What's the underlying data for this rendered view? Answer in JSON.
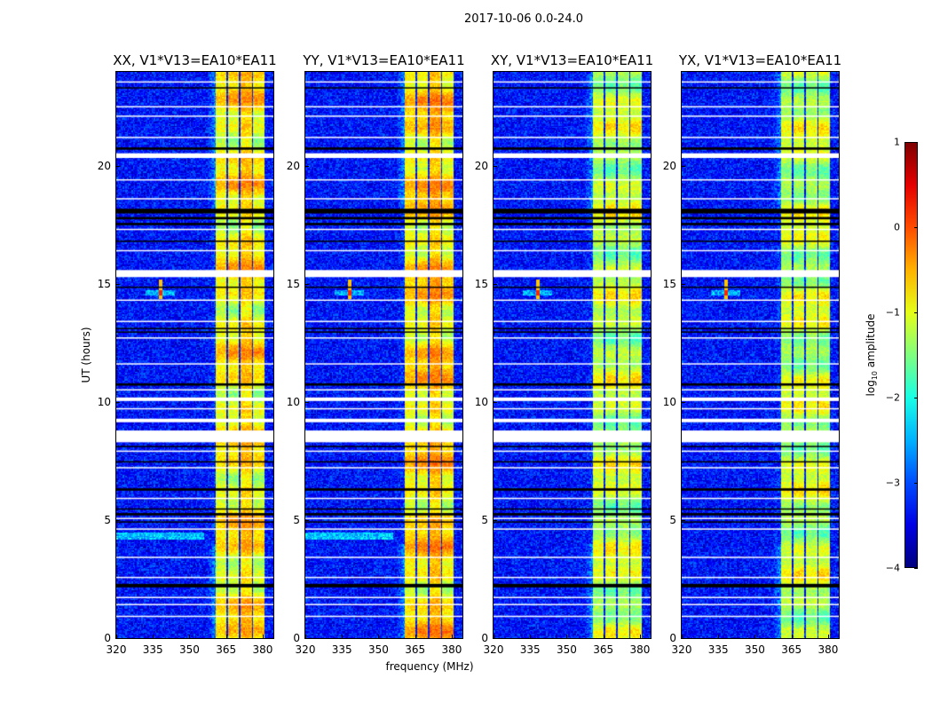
{
  "suptitle": "2017-10-06 0.0-24.0",
  "chart_data": {
    "type": "heatmap",
    "xlabel": "frequency (MHz)",
    "ylabel": "UT (hours)",
    "xlim": [
      320,
      384.4
    ],
    "ylim": [
      0,
      24
    ],
    "xticks": [
      320,
      335,
      350,
      365,
      380
    ],
    "yticks": [
      0,
      5,
      10,
      15,
      20
    ],
    "panels": [
      {
        "title": "XX, V1*V13=EA10*EA11",
        "band_level": -0.9
      },
      {
        "title": "YY, V1*V13=EA10*EA11",
        "band_level": -0.8
      },
      {
        "title": "XY, V1*V13=EA10*EA11",
        "band_level": -1.2
      },
      {
        "title": "YX, V1*V13=EA10*EA11",
        "band_level": -1.2
      }
    ],
    "background_level": -3.3,
    "bands_mhz": [
      [
        360.7,
        365.0
      ],
      [
        365.5,
        370.0
      ],
      [
        370.6,
        375.4
      ],
      [
        376.0,
        380.4
      ]
    ],
    "rfi_spike": {
      "freq_mhz": 338,
      "ut": [
        14.4,
        15.2
      ]
    },
    "flagged_white_ut": [
      [
        0.9,
        0.95
      ],
      [
        1.4,
        1.45
      ],
      [
        1.7,
        1.75
      ],
      [
        2.55,
        2.6
      ],
      [
        3.4,
        3.45
      ],
      [
        4.6,
        4.65
      ],
      [
        5.05,
        5.1
      ],
      [
        5.9,
        5.95
      ],
      [
        7.2,
        7.25
      ],
      [
        7.9,
        7.95
      ],
      [
        8.3,
        8.8
      ],
      [
        9.15,
        9.3
      ],
      [
        9.7,
        9.75
      ],
      [
        10.05,
        10.2
      ],
      [
        10.5,
        10.55
      ],
      [
        11.6,
        11.65
      ],
      [
        12.7,
        12.75
      ],
      [
        13.4,
        13.45
      ],
      [
        14.3,
        14.35
      ],
      [
        15.3,
        15.6
      ],
      [
        16.4,
        16.45
      ],
      [
        17.3,
        17.35
      ],
      [
        18.6,
        18.65
      ],
      [
        19.4,
        19.45
      ],
      [
        20.35,
        20.55
      ],
      [
        21.2,
        21.25
      ],
      [
        22.1,
        22.15
      ],
      [
        22.5,
        22.55
      ],
      [
        23.55,
        23.6
      ]
    ],
    "flagged_black_ut": [
      [
        2.15,
        2.3
      ],
      [
        4.9,
        4.95
      ],
      [
        5.2,
        5.3
      ],
      [
        5.45,
        5.5
      ],
      [
        6.25,
        6.35
      ],
      [
        7.45,
        7.5
      ],
      [
        8.1,
        8.15
      ],
      [
        10.7,
        10.8
      ],
      [
        12.95,
        13.0
      ],
      [
        13.1,
        13.15
      ],
      [
        14.85,
        14.9
      ],
      [
        16.8,
        16.85
      ],
      [
        17.5,
        17.6
      ],
      [
        17.75,
        17.85
      ],
      [
        18.0,
        18.2
      ],
      [
        20.7,
        20.8
      ],
      [
        23.3,
        23.35
      ]
    ],
    "colorbar": {
      "label_base": "log",
      "label_sub": "10",
      "label_rest": " amplitude",
      "range": [
        -4,
        1
      ],
      "ticks": [
        "1",
        "0",
        "−1",
        "−2",
        "−3",
        "−4"
      ],
      "cmap": "jet"
    }
  }
}
